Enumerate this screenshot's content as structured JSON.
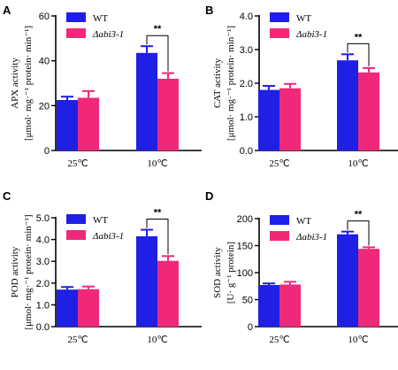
{
  "colors": {
    "wt": "#1f1fe6",
    "mutant": "#f0287a",
    "axis": "#000000"
  },
  "chart_data": [
    {
      "panel": "A",
      "type": "bar",
      "categories": [
        "25℃",
        "10℃"
      ],
      "ylabel_line1": "APX activity",
      "ylabel_line2": "[μmol· mg·⁻¹ protein· min⁻¹]",
      "ylim": [
        0,
        60
      ],
      "yticks": [
        0,
        20,
        40,
        60
      ],
      "ytick_labels": [
        "0",
        "20",
        "40",
        "60"
      ],
      "series": [
        {
          "name": "WT",
          "values": [
            22.5,
            43.5
          ],
          "errors": [
            1.5,
            3.0
          ]
        },
        {
          "name": "Δabi3-1",
          "values": [
            23.5,
            32.0
          ],
          "errors": [
            3.0,
            2.5
          ]
        }
      ],
      "significance": {
        "category": "10℃",
        "label": "**"
      },
      "legend": "top-left"
    },
    {
      "panel": "B",
      "type": "bar",
      "categories": [
        "25℃",
        "10℃"
      ],
      "ylabel_line1": "CAT activity",
      "ylabel_line2": "[μmol· mg·⁻¹ protein· min⁻¹]",
      "ylim": [
        0,
        4
      ],
      "yticks": [
        0,
        1,
        2,
        3,
        4
      ],
      "ytick_labels": [
        "0.0",
        "1.0",
        "2.0",
        "3.0",
        "4.0"
      ],
      "series": [
        {
          "name": "WT",
          "values": [
            1.8,
            2.68
          ],
          "errors": [
            0.12,
            0.18
          ]
        },
        {
          "name": "Δabi3-1",
          "values": [
            1.85,
            2.32
          ],
          "errors": [
            0.13,
            0.13
          ]
        }
      ],
      "significance": {
        "category": "10℃",
        "label": "**"
      },
      "legend": "top-left"
    },
    {
      "panel": "C",
      "type": "bar",
      "categories": [
        "25℃",
        "10℃"
      ],
      "ylabel_line1": "POD activity",
      "ylabel_line2": "[μmol· mg·⁻¹ protein· min⁻¹]",
      "ylim": [
        0,
        5
      ],
      "yticks": [
        0,
        1,
        2,
        3,
        4,
        5
      ],
      "ytick_labels": [
        "0.0",
        "1.0",
        "2.0",
        "3.0",
        "4.0",
        "5.0"
      ],
      "series": [
        {
          "name": "WT",
          "values": [
            1.7,
            4.15
          ],
          "errors": [
            0.12,
            0.3
          ]
        },
        {
          "name": "Δabi3-1",
          "values": [
            1.72,
            3.02
          ],
          "errors": [
            0.12,
            0.22
          ]
        }
      ],
      "significance": {
        "category": "10℃",
        "label": "**"
      },
      "legend": "top-left"
    },
    {
      "panel": "D",
      "type": "bar",
      "categories": [
        "25℃",
        "10℃"
      ],
      "ylabel_line1": "SOD activity",
      "ylabel_line2": "[U· g⁻¹ protein]",
      "ylim": [
        0,
        200
      ],
      "yticks": [
        0,
        50,
        100,
        150,
        200
      ],
      "ytick_labels": [
        "0",
        "50",
        "100",
        "150",
        "200"
      ],
      "series": [
        {
          "name": "WT",
          "values": [
            77,
            171
          ],
          "errors": [
            3,
            5
          ]
        },
        {
          "name": "Δabi3-1",
          "values": [
            78,
            144
          ],
          "errors": [
            5,
            3
          ]
        }
      ],
      "significance": {
        "category": "10℃",
        "label": "**"
      },
      "legend": "top-left"
    }
  ]
}
